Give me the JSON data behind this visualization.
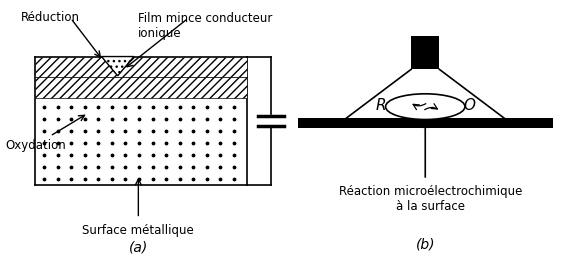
{
  "fig_width": 5.67,
  "fig_height": 2.57,
  "dpi": 100,
  "bg_color": "#ffffff",
  "label_a": "(a)",
  "label_b": "(b)",
  "text_reduction": "Réduction",
  "text_film": "Film mince conducteur\nionique",
  "text_oxydation": "Oxydation",
  "text_surface": "Surface métallique",
  "text_reaction": "Réaction microélectrochimique\nà la surface",
  "text_R": "R",
  "text_O": "O"
}
